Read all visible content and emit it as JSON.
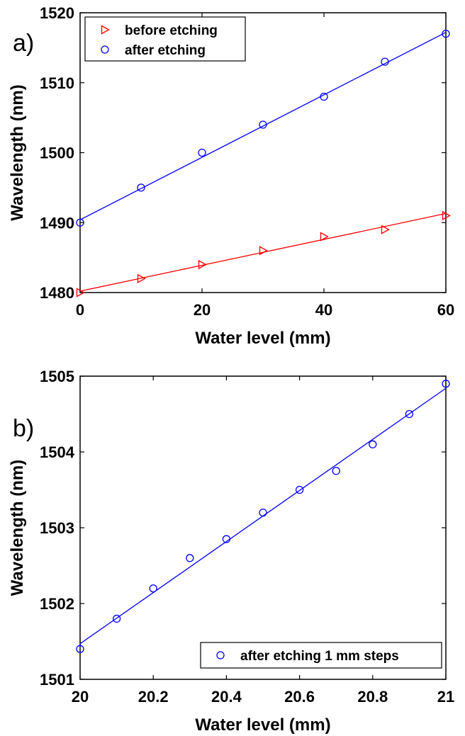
{
  "chart_data": [
    {
      "type": "scatter",
      "panel_label": "a)",
      "xlabel": "Water level (mm)",
      "ylabel": "Wavelength (nm)",
      "xlim": [
        0,
        60
      ],
      "ylim": [
        1480,
        1520
      ],
      "xticks": [
        "0",
        "20",
        "40",
        "60"
      ],
      "yticks": [
        "1480",
        "1490",
        "1500",
        "1510",
        "1520"
      ],
      "legend_position": "top-left",
      "series": [
        {
          "name": "before etching",
          "color": "#ff0000",
          "marker": "triangle-right",
          "x": [
            0,
            10,
            20,
            30,
            40,
            50,
            60
          ],
          "y": [
            1480,
            1482,
            1484,
            1486,
            1488,
            1489,
            1491
          ],
          "fit": [
            [
              0,
              1480.2
            ],
            [
              60,
              1491.3
            ]
          ]
        },
        {
          "name": "after etching",
          "color": "#0000ff",
          "marker": "circle",
          "x": [
            0,
            10,
            20,
            30,
            40,
            50,
            60
          ],
          "y": [
            1490,
            1495,
            1500,
            1504,
            1508,
            1513,
            1517
          ],
          "fit": [
            [
              0,
              1490.4
            ],
            [
              60,
              1517.2
            ]
          ]
        }
      ]
    },
    {
      "type": "scatter",
      "panel_label": "b)",
      "xlabel": "Water level (mm)",
      "ylabel": "Wavelength (nm)",
      "xlim": [
        20,
        21
      ],
      "ylim": [
        1501,
        1505
      ],
      "xticks": [
        "20",
        "20.2",
        "20.4",
        "20.6",
        "20.8",
        "21"
      ],
      "yticks": [
        "1501",
        "1502",
        "1503",
        "1504",
        "1505"
      ],
      "legend_position": "bottom-right",
      "series": [
        {
          "name": "after etching 1 mm steps",
          "color": "#0000ff",
          "marker": "circle",
          "x": [
            20,
            20.1,
            20.2,
            20.3,
            20.4,
            20.5,
            20.6,
            20.7,
            20.8,
            20.9,
            21
          ],
          "y": [
            1501.4,
            1501.8,
            1502.2,
            1502.6,
            1502.85,
            1503.2,
            1503.5,
            1503.75,
            1504.1,
            1504.5,
            1504.9
          ],
          "fit": [
            [
              20,
              1501.47
            ],
            [
              21,
              1504.84
            ]
          ]
        }
      ]
    }
  ]
}
